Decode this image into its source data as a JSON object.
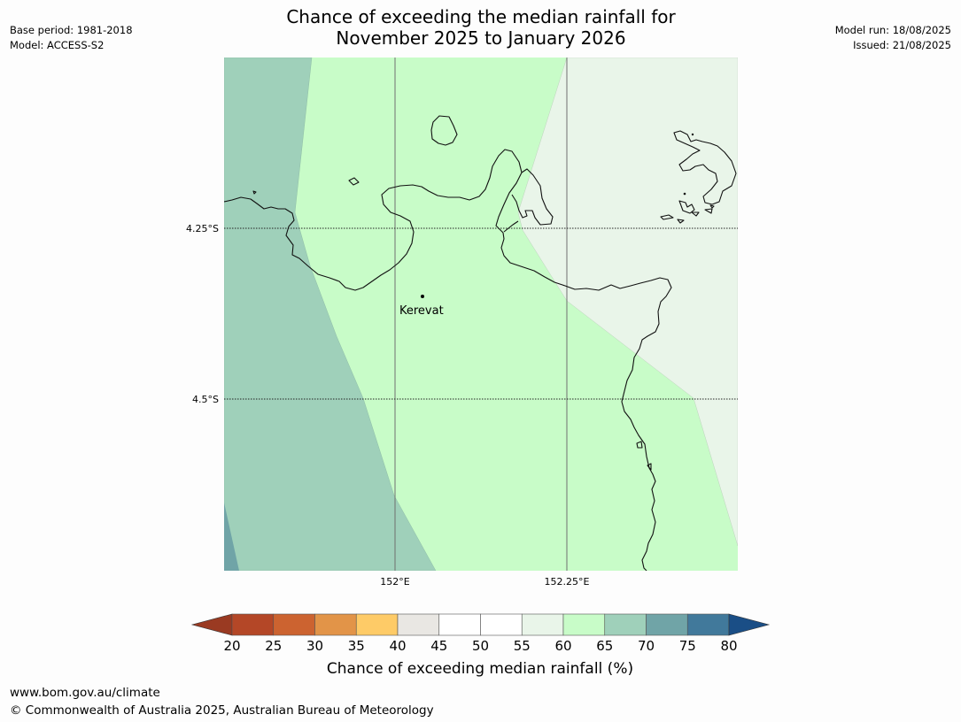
{
  "title": {
    "line1": "Chance of exceeding the median rainfall for",
    "line2": "November 2025 to January 2026"
  },
  "meta_left": {
    "base_period": "Base period: 1981-2018",
    "model": "Model: ACCESS-S2"
  },
  "meta_right": {
    "model_run": "Model run: 18/08/2025",
    "issued": "Issued: 21/08/2025"
  },
  "map": {
    "lat_labels": [
      "4.25°S",
      "4.5°S"
    ],
    "lon_labels": [
      "152°E",
      "152.25°E"
    ],
    "place": "Kerevat",
    "zones": [
      {
        "range": "60-65",
        "color": "#c8fcc8"
      },
      {
        "range": "55-60",
        "color": "#e9f5e9"
      },
      {
        "range": "65-70",
        "color": "#9fd0ba"
      },
      {
        "range": "70-75",
        "color": "#70a4a7"
      }
    ]
  },
  "legend": {
    "title": "Chance of exceeding median rainfall (%)",
    "ticks": [
      "20",
      "25",
      "30",
      "35",
      "40",
      "45",
      "50",
      "55",
      "60",
      "65",
      "70",
      "75",
      "80"
    ],
    "colors": [
      "#b44727",
      "#cc6330",
      "#e29448",
      "#fecb67",
      "#e9e7e3",
      "#ffffff",
      "#ffffff",
      "#e9f5e9",
      "#c8fcc8",
      "#9fd0ba",
      "#70a4a7",
      "#41799b"
    ],
    "under_color": "#9a3a22",
    "over_color": "#1a4e86"
  },
  "footer": {
    "url": "www.bom.gov.au/climate",
    "copyright": "© Commonwealth of Australia 2025, Australian Bureau of Meteorology"
  }
}
